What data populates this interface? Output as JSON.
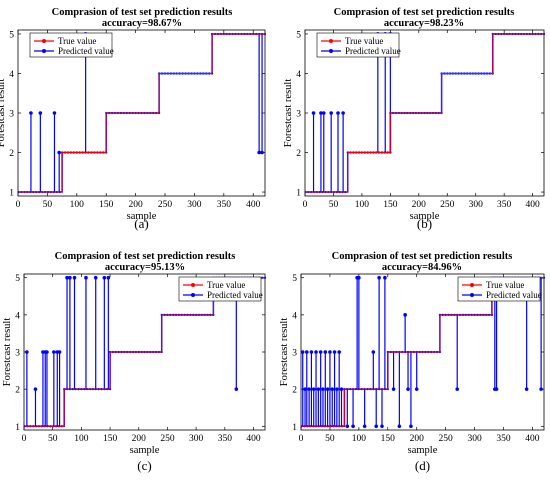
{
  "chart_data": [
    {
      "type": "line",
      "caption": "(a)",
      "title": "Comprasion of test set prediction results",
      "subtitle": "accuracy=98.67%",
      "xlabel": "sample",
      "ylabel": "Forestcast result",
      "xlim": [
        0,
        420
      ],
      "ylim": [
        0.9,
        5.1
      ],
      "xticks": [
        0,
        50,
        100,
        150,
        200,
        250,
        300,
        350,
        400
      ],
      "yticks": [
        1,
        2,
        3,
        4,
        5
      ],
      "legend": {
        "position": "top-left",
        "entries": [
          "True value",
          "Predicted value"
        ]
      },
      "series": [
        {
          "name": "True value",
          "color": "#ff0000",
          "segments": [
            {
              "x_start": 1,
              "x_end": 75,
              "y": 1
            },
            {
              "x_start": 75,
              "x_end": 150,
              "y": 2
            },
            {
              "x_start": 150,
              "x_end": 240,
              "y": 3
            },
            {
              "x_start": 240,
              "x_end": 330,
              "y": 4
            },
            {
              "x_start": 330,
              "x_end": 420,
              "y": 5
            }
          ]
        },
        {
          "name": "Predicted value",
          "color": "#0000ff",
          "outliers": [
            {
              "x": 22,
              "y": 3
            },
            {
              "x": 38,
              "y": 3
            },
            {
              "x": 62,
              "y": 3
            },
            {
              "x": 70,
              "y": 2
            },
            {
              "x": 115,
              "y": 5
            },
            {
              "x": 410,
              "y": 2
            },
            {
              "x": 415,
              "y": 2
            }
          ]
        }
      ]
    },
    {
      "type": "line",
      "caption": "(b)",
      "title": "Comprasion of test set prediction results",
      "subtitle": "accuracy=98.23%",
      "xlabel": "sample",
      "ylabel": "Forestcast result",
      "xlim": [
        0,
        420
      ],
      "ylim": [
        0.9,
        5.1
      ],
      "xticks": [
        0,
        50,
        100,
        150,
        200,
        250,
        300,
        350,
        400
      ],
      "yticks": [
        1,
        2,
        3,
        4,
        5
      ],
      "legend": {
        "position": "top-left",
        "entries": [
          "True value",
          "Predicted value"
        ]
      },
      "series": [
        {
          "name": "True value",
          "color": "#ff0000",
          "segments": [
            {
              "x_start": 1,
              "x_end": 75,
              "y": 1
            },
            {
              "x_start": 75,
              "x_end": 150,
              "y": 2
            },
            {
              "x_start": 150,
              "x_end": 240,
              "y": 3
            },
            {
              "x_start": 240,
              "x_end": 330,
              "y": 4
            },
            {
              "x_start": 330,
              "x_end": 420,
              "y": 5
            }
          ]
        },
        {
          "name": "Predicted value",
          "color": "#0000ff",
          "outliers": [
            {
              "x": 15,
              "y": 3
            },
            {
              "x": 28,
              "y": 3
            },
            {
              "x": 33,
              "y": 3
            },
            {
              "x": 46,
              "y": 3
            },
            {
              "x": 58,
              "y": 3
            },
            {
              "x": 67,
              "y": 3
            },
            {
              "x": 128,
              "y": 5
            },
            {
              "x": 141,
              "y": 5
            },
            {
              "x": 150,
              "y": 5
            }
          ]
        }
      ]
    },
    {
      "type": "line",
      "caption": "(c)",
      "title": "Comprasion of test set prediction results",
      "subtitle": "accuracy=95.13%",
      "xlabel": "sample",
      "ylabel": "Forestcast result",
      "xlim": [
        0,
        420
      ],
      "ylim": [
        0.9,
        5.1
      ],
      "xticks": [
        0,
        50,
        100,
        150,
        200,
        250,
        300,
        350,
        400
      ],
      "yticks": [
        1,
        2,
        3,
        4,
        5
      ],
      "legend": {
        "position": "top-right",
        "entries": [
          "True value",
          "Predicted value"
        ]
      },
      "series": [
        {
          "name": "True value",
          "color": "#ff0000",
          "segments": [
            {
              "x_start": 1,
              "x_end": 70,
              "y": 1
            },
            {
              "x_start": 70,
              "x_end": 150,
              "y": 2
            },
            {
              "x_start": 150,
              "x_end": 240,
              "y": 3
            },
            {
              "x_start": 240,
              "x_end": 330,
              "y": 4
            },
            {
              "x_start": 330,
              "x_end": 420,
              "y": 5
            }
          ]
        },
        {
          "name": "Predicted value",
          "color": "#0000ff",
          "outliers": [
            {
              "x": 5,
              "y": 3
            },
            {
              "x": 20,
              "y": 2
            },
            {
              "x": 33,
              "y": 3
            },
            {
              "x": 37,
              "y": 3
            },
            {
              "x": 40,
              "y": 3
            },
            {
              "x": 52,
              "y": 3
            },
            {
              "x": 58,
              "y": 3
            },
            {
              "x": 62,
              "y": 3
            },
            {
              "x": 75,
              "y": 5
            },
            {
              "x": 80,
              "y": 5
            },
            {
              "x": 88,
              "y": 5
            },
            {
              "x": 108,
              "y": 5
            },
            {
              "x": 125,
              "y": 5
            },
            {
              "x": 140,
              "y": 5
            },
            {
              "x": 147,
              "y": 5
            },
            {
              "x": 370,
              "y": 2
            }
          ]
        }
      ]
    },
    {
      "type": "line",
      "caption": "(d)",
      "title": "Comprasion of test set prediction results",
      "subtitle": "accuracy=84.96%",
      "xlabel": "sample",
      "ylabel": "Forestcast result",
      "xlim": [
        0,
        420
      ],
      "ylim": [
        0.9,
        5.1
      ],
      "xticks": [
        0,
        50,
        100,
        150,
        200,
        250,
        300,
        350,
        400
      ],
      "yticks": [
        1,
        2,
        3,
        4,
        5
      ],
      "legend": {
        "position": "top-right",
        "entries": [
          "True value",
          "Predicted value"
        ]
      },
      "series": [
        {
          "name": "True value",
          "color": "#ff0000",
          "segments": [
            {
              "x_start": 1,
              "x_end": 75,
              "y": 1
            },
            {
              "x_start": 75,
              "x_end": 150,
              "y": 2
            },
            {
              "x_start": 150,
              "x_end": 240,
              "y": 3
            },
            {
              "x_start": 240,
              "x_end": 330,
              "y": 4
            },
            {
              "x_start": 330,
              "x_end": 420,
              "y": 5
            }
          ]
        },
        {
          "name": "Predicted value",
          "color": "#0000ff",
          "outliers": [
            {
              "x": 3,
              "y": 3
            },
            {
              "x": 7,
              "y": 2
            },
            {
              "x": 10,
              "y": 3
            },
            {
              "x": 14,
              "y": 2
            },
            {
              "x": 18,
              "y": 3
            },
            {
              "x": 22,
              "y": 2
            },
            {
              "x": 26,
              "y": 3
            },
            {
              "x": 30,
              "y": 2
            },
            {
              "x": 34,
              "y": 3
            },
            {
              "x": 38,
              "y": 2
            },
            {
              "x": 42,
              "y": 3
            },
            {
              "x": 46,
              "y": 2
            },
            {
              "x": 50,
              "y": 3
            },
            {
              "x": 54,
              "y": 2
            },
            {
              "x": 58,
              "y": 3
            },
            {
              "x": 62,
              "y": 2
            },
            {
              "x": 66,
              "y": 3
            },
            {
              "x": 70,
              "y": 2
            },
            {
              "x": 80,
              "y": 1
            },
            {
              "x": 90,
              "y": 1
            },
            {
              "x": 97,
              "y": 5
            },
            {
              "x": 100,
              "y": 5
            },
            {
              "x": 110,
              "y": 1
            },
            {
              "x": 125,
              "y": 3
            },
            {
              "x": 130,
              "y": 1
            },
            {
              "x": 135,
              "y": 5
            },
            {
              "x": 140,
              "y": 1
            },
            {
              "x": 145,
              "y": 5
            },
            {
              "x": 160,
              "y": 2
            },
            {
              "x": 170,
              "y": 1
            },
            {
              "x": 180,
              "y": 4
            },
            {
              "x": 185,
              "y": 2
            },
            {
              "x": 190,
              "y": 1
            },
            {
              "x": 200,
              "y": 2
            },
            {
              "x": 270,
              "y": 2
            },
            {
              "x": 335,
              "y": 2
            },
            {
              "x": 338,
              "y": 2
            },
            {
              "x": 390,
              "y": 2
            },
            {
              "x": 415,
              "y": 2
            }
          ]
        }
      ]
    }
  ]
}
